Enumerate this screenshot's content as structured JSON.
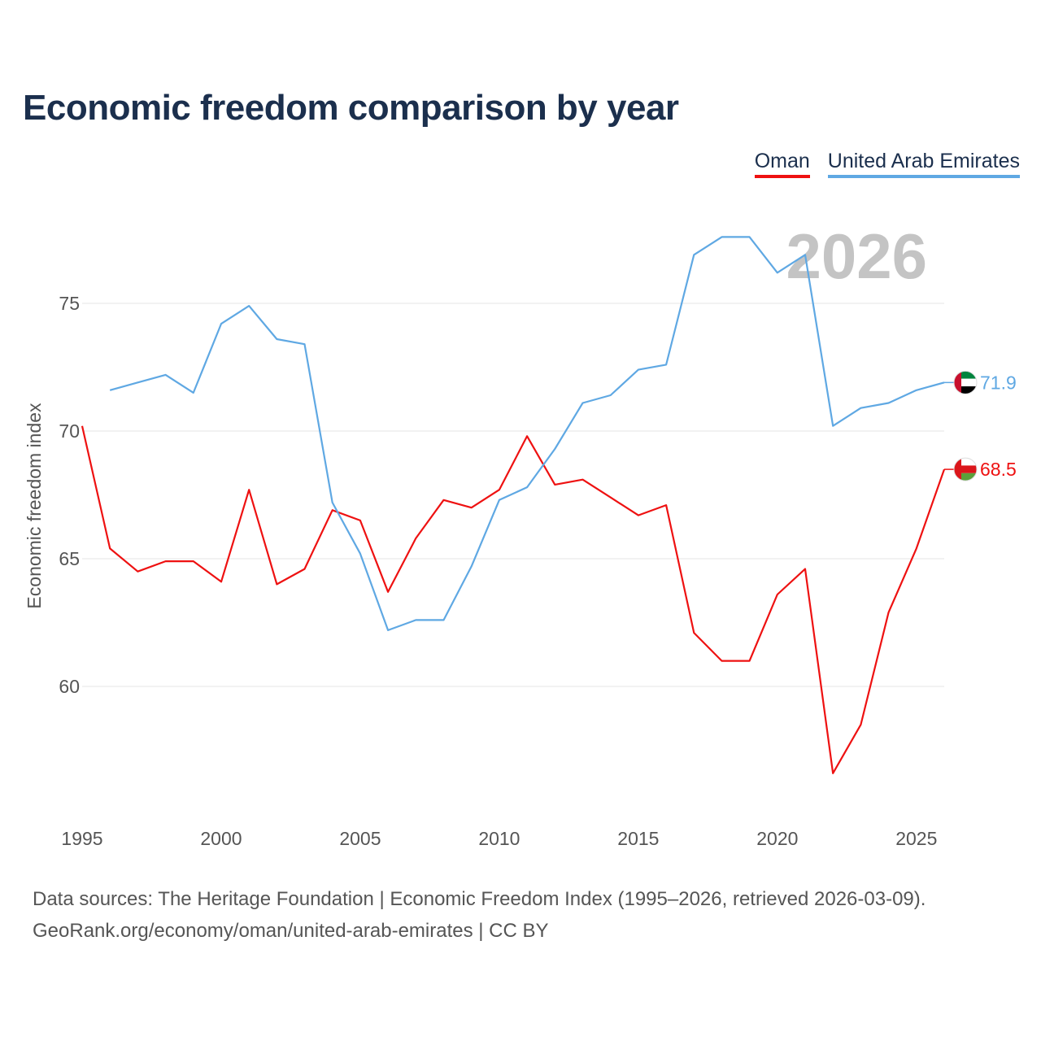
{
  "chart_data": {
    "type": "line",
    "title": "Economic freedom comparison by year",
    "ylabel": "Economic freedom index",
    "xlabel": "",
    "ylim": [
      55,
      80
    ],
    "xlim": [
      1995,
      2026
    ],
    "year_watermark": "2026",
    "y_ticks": [
      60,
      65,
      70,
      75
    ],
    "x_ticks": [
      1995,
      2000,
      2005,
      2010,
      2015,
      2020,
      2025
    ],
    "series": [
      {
        "name": "Oman",
        "color": "#ee1111",
        "end_label": "68.5",
        "points": [
          [
            1995,
            70.2
          ],
          [
            1996,
            65.4
          ],
          [
            1997,
            64.5
          ],
          [
            1998,
            64.9
          ],
          [
            1999,
            64.9
          ],
          [
            2000,
            64.1
          ],
          [
            2001,
            67.7
          ],
          [
            2002,
            64.0
          ],
          [
            2003,
            64.6
          ],
          [
            2004,
            66.9
          ],
          [
            2005,
            66.5
          ],
          [
            2006,
            63.7
          ],
          [
            2007,
            65.8
          ],
          [
            2008,
            67.3
          ],
          [
            2009,
            67.0
          ],
          [
            2010,
            67.7
          ],
          [
            2011,
            69.8
          ],
          [
            2012,
            67.9
          ],
          [
            2013,
            68.1
          ],
          [
            2014,
            67.4
          ],
          [
            2015,
            66.7
          ],
          [
            2016,
            67.1
          ],
          [
            2017,
            62.1
          ],
          [
            2018,
            61.0
          ],
          [
            2019,
            61.0
          ],
          [
            2020,
            63.6
          ],
          [
            2021,
            64.6
          ],
          [
            2022,
            56.6
          ],
          [
            2023,
            58.5
          ],
          [
            2024,
            62.9
          ],
          [
            2025,
            65.4
          ],
          [
            2026,
            68.5
          ]
        ]
      },
      {
        "name": "United Arab Emirates",
        "color": "#5fa8e3",
        "end_label": "71.9",
        "points": [
          [
            1996,
            71.6
          ],
          [
            1997,
            71.9
          ],
          [
            1998,
            72.2
          ],
          [
            1999,
            71.5
          ],
          [
            2000,
            74.2
          ],
          [
            2001,
            74.9
          ],
          [
            2002,
            73.6
          ],
          [
            2003,
            73.4
          ],
          [
            2004,
            67.2
          ],
          [
            2005,
            65.2
          ],
          [
            2006,
            62.2
          ],
          [
            2007,
            62.6
          ],
          [
            2008,
            62.6
          ],
          [
            2009,
            64.7
          ],
          [
            2010,
            67.3
          ],
          [
            2011,
            67.8
          ],
          [
            2012,
            69.3
          ],
          [
            2013,
            71.1
          ],
          [
            2014,
            71.4
          ],
          [
            2015,
            72.4
          ],
          [
            2016,
            72.6
          ],
          [
            2017,
            76.9
          ],
          [
            2018,
            77.6
          ],
          [
            2019,
            77.6
          ],
          [
            2020,
            76.2
          ],
          [
            2021,
            76.9
          ],
          [
            2022,
            70.2
          ],
          [
            2023,
            70.9
          ],
          [
            2024,
            71.1
          ],
          [
            2025,
            71.6
          ],
          [
            2026,
            71.9
          ]
        ]
      }
    ]
  },
  "legend": {
    "oman": "Oman",
    "uae": "United Arab Emirates"
  },
  "footer": {
    "line1": "Data sources: The Heritage Foundation | Economic Freedom Index (1995–2026, retrieved 2026-03-09).",
    "line2": "GeoRank.org/economy/oman/united-arab-emirates | CC BY"
  }
}
